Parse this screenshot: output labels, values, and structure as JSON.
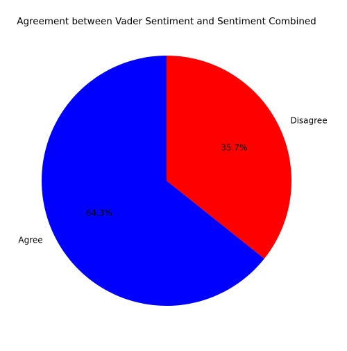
{
  "chart_data": {
    "type": "pie",
    "title": "Agreement between Vader Sentiment and Sentiment Combined",
    "slices": [
      {
        "label": "Agree",
        "value": 64.3,
        "pct_label": "64.3%",
        "color": "#0000ff"
      },
      {
        "label": "Disagree",
        "value": 35.7,
        "pct_label": "35.7%",
        "color": "#ff0000"
      }
    ],
    "start_angle_deg": 90,
    "direction": "counterclockwise",
    "legend": "none"
  }
}
